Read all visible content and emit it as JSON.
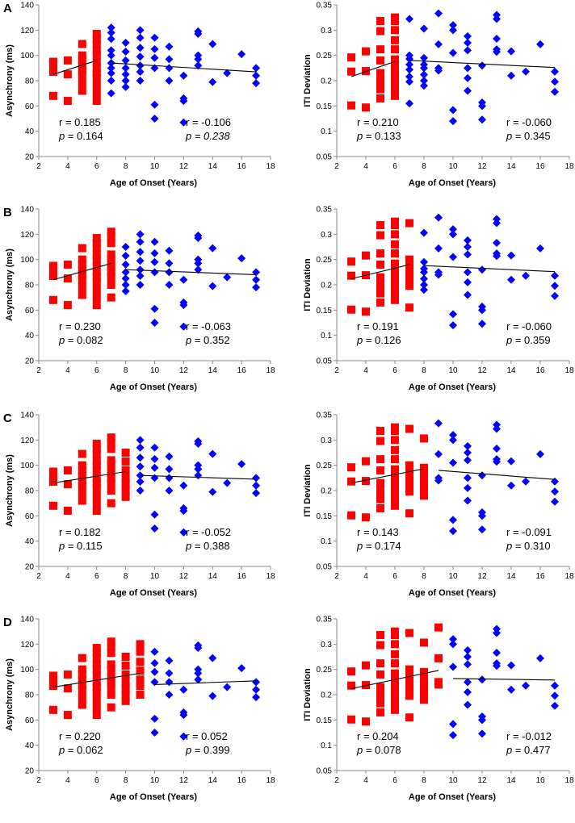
{
  "colors": {
    "early": "#ff0000",
    "late": "#0000ff",
    "axis": "#888888",
    "fit": "#000000"
  },
  "chart_data": [
    {
      "panel": "A",
      "type": "scatter",
      "measure": "asynchrony",
      "xlabel": "Age of Onset (Years)",
      "ylabel": "Asynchrony (ms)",
      "xlim": [
        2,
        18
      ],
      "ylim": [
        20,
        140
      ],
      "xticks": [
        "2",
        "4",
        "6",
        "8",
        "10",
        "12",
        "14",
        "16",
        "18"
      ],
      "yticks": [
        "20",
        "40",
        "60",
        "80",
        "100",
        "120",
        "140"
      ],
      "cutoff": 6,
      "fit_early": [
        [
          3,
          85
        ],
        [
          6,
          96
        ]
      ],
      "fit_late": [
        [
          7,
          94
        ],
        [
          17,
          87
        ]
      ],
      "stats_early": {
        "r": "r = 0.185",
        "p_label": "p",
        "p_value": " = 0.164",
        "p_italic": false
      },
      "stats_late": {
        "r": "r = -0.106",
        "p_label": "p",
        "p_value": " = 0.238",
        "p_italic": true
      }
    },
    {
      "panel": "",
      "type": "scatter",
      "measure": "iti",
      "xlabel": "Age of Onset (Years)",
      "ylabel": "ITI Deviation",
      "xlim": [
        2,
        18
      ],
      "ylim": [
        0.05,
        0.35
      ],
      "xticks": [
        "2",
        "4",
        "6",
        "8",
        "10",
        "12",
        "14",
        "16",
        "18"
      ],
      "yticks": [
        "0.05",
        "0.1",
        "0.15",
        "0.2",
        "0.25",
        "0.3",
        "0.35"
      ],
      "cutoff": 6,
      "fit_early": [
        [
          3,
          0.208
        ],
        [
          6,
          0.238
        ]
      ],
      "fit_late": [
        [
          7,
          0.24
        ],
        [
          17,
          0.226
        ]
      ],
      "stats_early": {
        "r": "r = 0.210",
        "p_label": "p",
        "p_value": " = 0.133",
        "p_italic": false
      },
      "stats_late": {
        "r": "r = -0.060",
        "p_label": "p",
        "p_value": " = 0.345",
        "p_italic": false
      }
    },
    {
      "panel": "B",
      "type": "scatter",
      "measure": "asynchrony",
      "xlabel": "Age of Onset (Years)",
      "ylabel": "Asynchrony (ms)",
      "xlim": [
        2,
        18
      ],
      "ylim": [
        20,
        140
      ],
      "xticks": [
        "2",
        "4",
        "6",
        "8",
        "10",
        "12",
        "14",
        "16",
        "18"
      ],
      "yticks": [
        "20",
        "40",
        "60",
        "80",
        "100",
        "120",
        "140"
      ],
      "cutoff": 7,
      "fit_early": [
        [
          3,
          84
        ],
        [
          7,
          97
        ]
      ],
      "fit_late": [
        [
          8,
          92
        ],
        [
          17,
          88
        ]
      ],
      "stats_early": {
        "r": "r = 0.230",
        "p_label": "p",
        "p_value": " = 0.082",
        "p_italic": false
      },
      "stats_late": {
        "r": "r = -0.063",
        "p_label": "p",
        "p_value": " = 0.352",
        "p_italic": false
      }
    },
    {
      "panel": "",
      "type": "scatter",
      "measure": "iti",
      "xlabel": "Age of Onset (Years)",
      "ylabel": "ITI Deviation",
      "xlim": [
        2,
        18
      ],
      "ylim": [
        0.05,
        0.35
      ],
      "xticks": [
        "2",
        "4",
        "6",
        "8",
        "10",
        "12",
        "14",
        "16",
        "18"
      ],
      "yticks": [
        "0.05",
        "0.1",
        "0.15",
        "0.2",
        "0.25",
        "0.3",
        "0.35"
      ],
      "cutoff": 7,
      "fit_early": [
        [
          3,
          0.212
        ],
        [
          7,
          0.24
        ]
      ],
      "fit_late": [
        [
          8,
          0.238
        ],
        [
          17,
          0.226
        ]
      ],
      "stats_early": {
        "r": "r = 0.191",
        "p_label": "p",
        "p_value": " = 0.126",
        "p_italic": false
      },
      "stats_late": {
        "r": "r = -0.060",
        "p_label": "p",
        "p_value": " = 0.359",
        "p_italic": false
      }
    },
    {
      "panel": "C",
      "type": "scatter",
      "measure": "asynchrony",
      "xlabel": "Age of Onset (Years)",
      "ylabel": "Asynchrony (ms)",
      "xlim": [
        2,
        18
      ],
      "ylim": [
        20,
        140
      ],
      "xticks": [
        "2",
        "4",
        "6",
        "8",
        "10",
        "12",
        "14",
        "16",
        "18"
      ],
      "yticks": [
        "20",
        "40",
        "60",
        "80",
        "100",
        "120",
        "140"
      ],
      "cutoff": 8,
      "fit_early": [
        [
          3,
          86
        ],
        [
          8,
          95
        ]
      ],
      "fit_late": [
        [
          9,
          92
        ],
        [
          17,
          89
        ]
      ],
      "stats_early": {
        "r": "r = 0.182",
        "p_label": "p",
        "p_value": " = 0.115",
        "p_italic": false
      },
      "stats_late": {
        "r": "r = -0.052",
        "p_label": "p",
        "p_value": " = 0.388",
        "p_italic": false
      }
    },
    {
      "panel": "",
      "type": "scatter",
      "measure": "iti",
      "xlabel": "Age of Onset (Years)",
      "ylabel": "ITI Deviation",
      "xlim": [
        2,
        18
      ],
      "ylim": [
        0.05,
        0.35
      ],
      "xticks": [
        "2",
        "4",
        "6",
        "8",
        "10",
        "12",
        "14",
        "16",
        "18"
      ],
      "yticks": [
        "0.05",
        "0.1",
        "0.15",
        "0.2",
        "0.25",
        "0.3",
        "0.35"
      ],
      "cutoff": 8,
      "fit_early": [
        [
          3,
          0.215
        ],
        [
          8,
          0.243
        ]
      ],
      "fit_late": [
        [
          9,
          0.24
        ],
        [
          17,
          0.222
        ]
      ],
      "stats_early": {
        "r": "r = 0.143",
        "p_label": "p",
        "p_value": " = 0.174",
        "p_italic": false
      },
      "stats_late": {
        "r": "r = -0.091",
        "p_label": "p",
        "p_value": " = 0.310",
        "p_italic": false
      }
    },
    {
      "panel": "D",
      "type": "scatter",
      "measure": "asynchrony",
      "xlabel": "Age of Onset (Years)",
      "ylabel": "Asynchrony (ms)",
      "xlim": [
        2,
        18
      ],
      "ylim": [
        20,
        140
      ],
      "xticks": [
        "2",
        "4",
        "6",
        "8",
        "10",
        "12",
        "14",
        "16",
        "18"
      ],
      "yticks": [
        "20",
        "40",
        "60",
        "80",
        "100",
        "120",
        "140"
      ],
      "cutoff": 9,
      "fit_early": [
        [
          3,
          86
        ],
        [
          9,
          97
        ]
      ],
      "fit_late": [
        [
          10,
          88
        ],
        [
          17,
          91
        ]
      ],
      "stats_early": {
        "r": "r = 0.220",
        "p_label": "p",
        "p_value": " = 0.062",
        "p_italic": false
      },
      "stats_late": {
        "r": "r = 0.052",
        "p_label": "p",
        "p_value": " = 0.399",
        "p_italic": false
      }
    },
    {
      "panel": "",
      "type": "scatter",
      "measure": "iti",
      "xlabel": "Age of Onset (Years)",
      "ylabel": "ITI Deviation",
      "xlim": [
        2,
        18
      ],
      "ylim": [
        0.05,
        0.35
      ],
      "xticks": [
        "2",
        "4",
        "6",
        "8",
        "10",
        "12",
        "14",
        "16",
        "18"
      ],
      "yticks": [
        "0.05",
        "0.1",
        "0.15",
        "0.2",
        "0.25",
        "0.3",
        "0.35"
      ],
      "cutoff": 9,
      "fit_early": [
        [
          3,
          0.212
        ],
        [
          9,
          0.248
        ]
      ],
      "fit_late": [
        [
          10,
          0.232
        ],
        [
          17,
          0.229
        ]
      ],
      "stats_early": {
        "r": "r = 0.204",
        "p_label": "p",
        "p_value": " = 0.078",
        "p_italic": false
      },
      "stats_late": {
        "r": "r = -0.012",
        "p_label": "p",
        "p_value": " = 0.477",
        "p_italic": false
      }
    }
  ],
  "points": {
    "asynchrony": [
      [
        3,
        68
      ],
      [
        3,
        87
      ],
      [
        3,
        91
      ],
      [
        3,
        95
      ],
      [
        4,
        64
      ],
      [
        4,
        85
      ],
      [
        4,
        96
      ],
      [
        5,
        72
      ],
      [
        5,
        78
      ],
      [
        5,
        84
      ],
      [
        5,
        88
      ],
      [
        5,
        92
      ],
      [
        5,
        96
      ],
      [
        5,
        100
      ],
      [
        5,
        109
      ],
      [
        6,
        64
      ],
      [
        6,
        70
      ],
      [
        6,
        76
      ],
      [
        6,
        82
      ],
      [
        6,
        86
      ],
      [
        6,
        90
      ],
      [
        6,
        95
      ],
      [
        6,
        100
      ],
      [
        6,
        104
      ],
      [
        6,
        109
      ],
      [
        6,
        113
      ],
      [
        6,
        117
      ],
      [
        7,
        70
      ],
      [
        7,
        80
      ],
      [
        7,
        86
      ],
      [
        7,
        90
      ],
      [
        7,
        94
      ],
      [
        7,
        100
      ],
      [
        7,
        104
      ],
      [
        7,
        113
      ],
      [
        7,
        118
      ],
      [
        7,
        122
      ],
      [
        8,
        75
      ],
      [
        8,
        80
      ],
      [
        8,
        85
      ],
      [
        8,
        90
      ],
      [
        8,
        96
      ],
      [
        8,
        103
      ],
      [
        8,
        110
      ],
      [
        9,
        80
      ],
      [
        9,
        87
      ],
      [
        9,
        92
      ],
      [
        9,
        99
      ],
      [
        9,
        106
      ],
      [
        9,
        114
      ],
      [
        9,
        120
      ],
      [
        10,
        50
      ],
      [
        10,
        61
      ],
      [
        10,
        90
      ],
      [
        10,
        98
      ],
      [
        10,
        105
      ],
      [
        10,
        114
      ],
      [
        11,
        80
      ],
      [
        11,
        90
      ],
      [
        11,
        97
      ],
      [
        11,
        107
      ],
      [
        12,
        47
      ],
      [
        12,
        64
      ],
      [
        12,
        66
      ],
      [
        12,
        84
      ],
      [
        13,
        92
      ],
      [
        13,
        97
      ],
      [
        13,
        100
      ],
      [
        13,
        117
      ],
      [
        13,
        119
      ],
      [
        14,
        79
      ],
      [
        14,
        109
      ],
      [
        15,
        86
      ],
      [
        16,
        101
      ],
      [
        17,
        78
      ],
      [
        17,
        84
      ],
      [
        17,
        90
      ]
    ],
    "iti": [
      [
        3,
        0.151
      ],
      [
        3,
        0.218
      ],
      [
        3,
        0.246
      ],
      [
        4,
        0.147
      ],
      [
        4,
        0.219
      ],
      [
        4,
        0.258
      ],
      [
        5,
        0.165
      ],
      [
        5,
        0.183
      ],
      [
        5,
        0.192
      ],
      [
        5,
        0.205
      ],
      [
        5,
        0.215
      ],
      [
        5,
        0.24
      ],
      [
        5,
        0.262
      ],
      [
        5,
        0.298
      ],
      [
        5,
        0.318
      ],
      [
        6,
        0.17
      ],
      [
        6,
        0.183
      ],
      [
        6,
        0.197
      ],
      [
        6,
        0.207
      ],
      [
        6,
        0.218
      ],
      [
        6,
        0.232
      ],
      [
        6,
        0.242
      ],
      [
        6,
        0.262
      ],
      [
        6,
        0.28
      ],
      [
        6,
        0.3
      ],
      [
        6,
        0.318
      ],
      [
        6,
        0.325
      ],
      [
        7,
        0.155
      ],
      [
        7,
        0.198
      ],
      [
        7,
        0.208
      ],
      [
        7,
        0.222
      ],
      [
        7,
        0.232
      ],
      [
        7,
        0.243
      ],
      [
        7,
        0.25
      ],
      [
        7,
        0.322
      ],
      [
        8,
        0.19
      ],
      [
        8,
        0.2
      ],
      [
        8,
        0.212
      ],
      [
        8,
        0.225
      ],
      [
        8,
        0.232
      ],
      [
        8,
        0.245
      ],
      [
        8,
        0.303
      ],
      [
        9,
        0.22
      ],
      [
        9,
        0.225
      ],
      [
        9,
        0.272
      ],
      [
        9,
        0.333
      ],
      [
        10,
        0.12
      ],
      [
        10,
        0.142
      ],
      [
        10,
        0.255
      ],
      [
        10,
        0.3
      ],
      [
        10,
        0.31
      ],
      [
        11,
        0.18
      ],
      [
        11,
        0.205
      ],
      [
        11,
        0.225
      ],
      [
        11,
        0.26
      ],
      [
        11,
        0.275
      ],
      [
        11,
        0.288
      ],
      [
        12,
        0.123
      ],
      [
        12,
        0.15
      ],
      [
        12,
        0.157
      ],
      [
        12,
        0.23
      ],
      [
        13,
        0.257
      ],
      [
        13,
        0.262
      ],
      [
        13,
        0.283
      ],
      [
        13,
        0.322
      ],
      [
        13,
        0.33
      ],
      [
        14,
        0.21
      ],
      [
        14,
        0.258
      ],
      [
        15,
        0.218
      ],
      [
        16,
        0.272
      ],
      [
        17,
        0.178
      ],
      [
        17,
        0.198
      ],
      [
        17,
        0.218
      ]
    ]
  }
}
